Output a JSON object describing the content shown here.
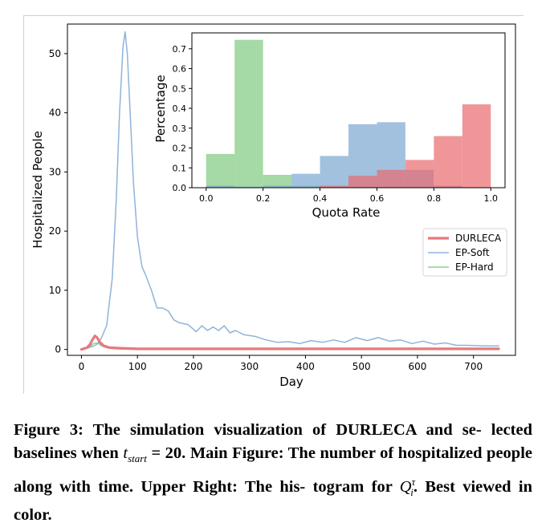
{
  "main_chart": {
    "xlabel": "Day",
    "ylabel": "Hospitalized People",
    "xlim": [
      -25,
      775
    ],
    "ylim": [
      -1,
      55
    ],
    "xticks": [
      "0",
      "100",
      "200",
      "300",
      "400",
      "500",
      "600",
      "700"
    ],
    "yticks": [
      "0",
      "10",
      "20",
      "30",
      "40",
      "50"
    ],
    "legend": [
      "DURLECA",
      "EP-Soft",
      "EP-Hard"
    ],
    "colors": {
      "DURLECA": "#e8787a",
      "EP-Soft": "#8fb4d8",
      "EP-Hard": "#8fd08d"
    }
  },
  "inset_chart": {
    "xlabel": "Quota Rate",
    "ylabel": "Percentage",
    "xticks": [
      "0.0",
      "0.2",
      "0.4",
      "0.6",
      "0.8",
      "1.0"
    ],
    "yticks": [
      "0.0",
      "0.1",
      "0.2",
      "0.3",
      "0.4",
      "0.5",
      "0.6",
      "0.7"
    ]
  },
  "chart_data": [
    {
      "type": "line",
      "xlabel": "Day",
      "ylabel": "Hospitalized People",
      "xlim": [
        -25,
        775
      ],
      "ylim": [
        -1,
        55
      ],
      "legend_position": "right",
      "series": [
        {
          "name": "DURLECA",
          "color": "#e8787a",
          "x": [
            0,
            10,
            15,
            20,
            24,
            28,
            33,
            40,
            50,
            70,
            100,
            200,
            400,
            600,
            745
          ],
          "y": [
            0,
            0.3,
            0.8,
            1.7,
            2.3,
            2.0,
            1.2,
            0.6,
            0.3,
            0.2,
            0.1,
            0.1,
            0.1,
            0.1,
            0.1
          ]
        },
        {
          "name": "EP-Soft",
          "color": "#8fb4d8",
          "x": [
            0,
            10,
            20,
            28,
            35,
            45,
            55,
            62,
            68,
            74,
            78,
            82,
            87,
            93,
            100,
            108,
            115,
            125,
            135,
            145,
            155,
            165,
            175,
            190,
            205,
            215,
            225,
            235,
            245,
            255,
            265,
            275,
            290,
            310,
            330,
            350,
            370,
            390,
            410,
            430,
            450,
            470,
            490,
            510,
            530,
            550,
            570,
            590,
            610,
            630,
            650,
            670,
            690,
            720,
            745
          ],
          "y": [
            0,
            0.2,
            0.5,
            0.9,
            1.8,
            4,
            12,
            25,
            40,
            51,
            53.7,
            50,
            40,
            28,
            19,
            14,
            12.5,
            10,
            7,
            7,
            6.5,
            5,
            4.5,
            4.2,
            3,
            4,
            3.2,
            3.8,
            3.2,
            4,
            2.8,
            3.2,
            2.5,
            2.2,
            1.6,
            1.2,
            1.3,
            1.0,
            1.5,
            1.2,
            1.6,
            1.2,
            2.0,
            1.5,
            2.0,
            1.4,
            1.6,
            1.0,
            1.4,
            0.9,
            1.1,
            0.7,
            0.7,
            0.6,
            0.6
          ]
        },
        {
          "name": "EP-Hard",
          "color": "#8fd08d",
          "x": [
            0,
            10,
            16,
            22,
            26,
            30,
            36,
            45,
            60,
            80,
            745
          ],
          "y": [
            0,
            0.25,
            0.6,
            1.0,
            1.1,
            1.0,
            0.6,
            0.3,
            0.1,
            0.05,
            0.0
          ]
        }
      ]
    },
    {
      "type": "bar",
      "xlabel": "Quota Rate",
      "ylabel": "Percentage",
      "xlim": [
        -0.05,
        1.05
      ],
      "ylim": [
        0,
        0.78
      ],
      "bin_edges": [
        0.0,
        0.1,
        0.2,
        0.3,
        0.4,
        0.5,
        0.6,
        0.7,
        0.8,
        0.9,
        1.0
      ],
      "series": [
        {
          "name": "EP-Hard",
          "color": "#7fc97f",
          "values": [
            0.17,
            0.745,
            0.065,
            0.01,
            0.0,
            0.0,
            0.0,
            0.0,
            0.0,
            0.0
          ]
        },
        {
          "name": "EP-Soft",
          "color": "#7ba7d1",
          "values": [
            0.01,
            0.005,
            0.01,
            0.07,
            0.16,
            0.32,
            0.33,
            0.09,
            0.01,
            0.0
          ]
        },
        {
          "name": "DURLECA",
          "color": "#ea6a6d",
          "values": [
            0.0,
            0.0,
            0.0,
            0.0,
            0.01,
            0.06,
            0.09,
            0.14,
            0.26,
            0.42
          ]
        }
      ]
    }
  ],
  "caption": {
    "lines": [
      "Figure 3: The simulation visualization of DURLECA and se-",
      "lected baselines when {t_start} = 20. Main Figure: The number",
      "of hospitalized people along with time. Upper Right: The his-",
      "togram for {Q}. Best viewed in color."
    ],
    "part_1": "Figure 3: The simulation visualization of DURLECA and se- lected baselines when ",
    "math_t": "t",
    "math_t_sub": "start",
    "part_2": " = 20. Main Figure: The number of hospitalized people along with time. Upper Right: The his- togram for ",
    "math_q": "Q",
    "math_q_sub": "i",
    "math_q_sup": "τ",
    "part_3": ". Best viewed in color."
  }
}
